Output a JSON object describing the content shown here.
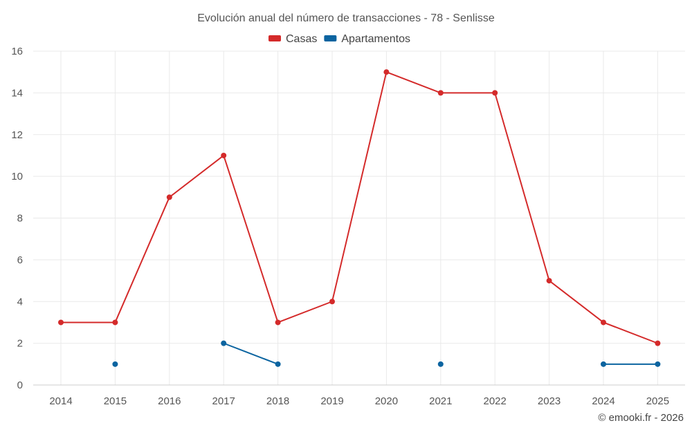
{
  "chart_data": {
    "type": "line",
    "title": "Evolución anual del número de transacciones - 78 - Senlisse",
    "x": [
      2014,
      2015,
      2016,
      2017,
      2018,
      2019,
      2020,
      2021,
      2022,
      2023,
      2024,
      2025
    ],
    "ylim": [
      0,
      16
    ],
    "yticks": [
      0,
      2,
      4,
      6,
      8,
      10,
      12,
      14,
      16
    ],
    "grid": true,
    "legend_position": "top-center",
    "series": [
      {
        "name": "Casas",
        "color": "#d42a2a",
        "values": [
          3,
          3,
          9,
          11,
          3,
          4,
          15,
          14,
          14,
          5,
          3,
          2
        ]
      },
      {
        "name": "Apartamentos",
        "color": "#0b64a0",
        "values": [
          null,
          1,
          null,
          2,
          1,
          null,
          null,
          1,
          null,
          null,
          1,
          1
        ]
      }
    ]
  },
  "credit": "© emooki.fr - 2026"
}
